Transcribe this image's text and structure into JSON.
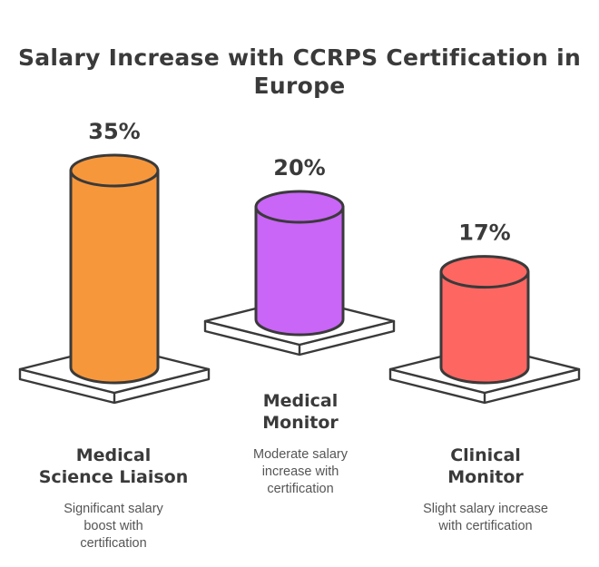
{
  "title": "Salary Increase with CCRPS Certification in Europe",
  "chart_data": {
    "type": "bar",
    "unit": "%",
    "categories": [
      "Medical Science Liaison",
      "Medical Monitor",
      "Clinical Monitor"
    ],
    "values": [
      35,
      20,
      17
    ],
    "value_labels": [
      "35%",
      "20%",
      "17%"
    ],
    "descriptions": [
      "Significant salary boost with certification",
      "Moderate salary increase with certification",
      "Slight salary increase with certification"
    ],
    "colors": [
      "#f7973b",
      "#c965f7",
      "#fe6662"
    ]
  },
  "items": [
    {
      "title_l1": "Medical",
      "title_l2": "Science Liaison",
      "desc_l1": "Significant salary",
      "desc_l2": "boost with",
      "desc_l3": "certification"
    },
    {
      "title_l1": "Medical",
      "title_l2": "Monitor",
      "desc_l1": "Moderate salary",
      "desc_l2": "increase with",
      "desc_l3": "certification"
    },
    {
      "title_l1": "Clinical",
      "title_l2": "Monitor",
      "desc_l1": "Slight salary increase",
      "desc_l2": "with certification",
      "desc_l3": ""
    }
  ]
}
